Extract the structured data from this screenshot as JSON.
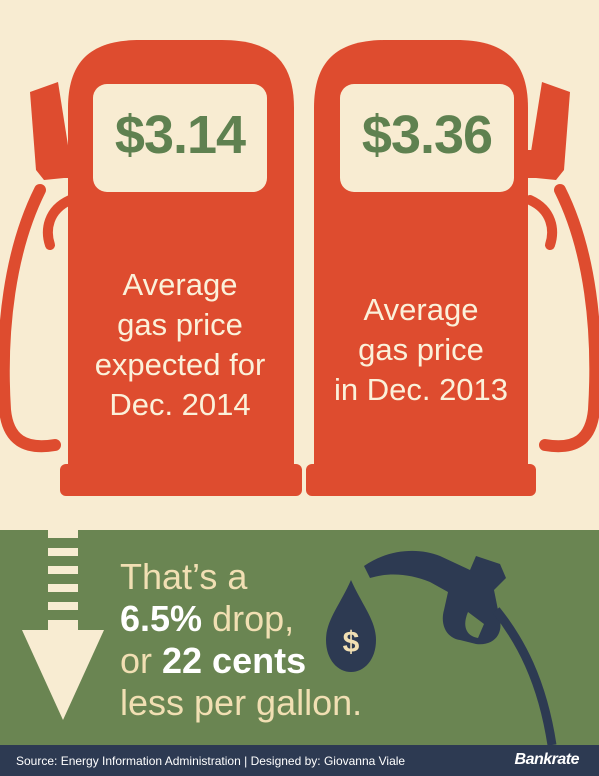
{
  "pumps": [
    {
      "price": "$3.14",
      "lines": [
        "Average",
        "gas price",
        "expected for",
        "Dec. 2014"
      ]
    },
    {
      "price": "$3.36",
      "lines": [
        "Average",
        "gas price",
        "in Dec. 2013"
      ]
    }
  ],
  "summary": {
    "line1": "That’s a",
    "line2_bold": "6.5%",
    "line2_rest": " drop,",
    "line3_pre": "or ",
    "line3_bold": "22 cents",
    "line4": "less per gallon."
  },
  "drop_icon_symbol": "$",
  "footer": {
    "source": "Source: Energy Information Administration  |  Designed by: Giovanna Viale",
    "brand": "Bankrate"
  },
  "colors": {
    "background": "#f8ecd2",
    "pump": "#de4c2f",
    "price": "#5f8150",
    "band": "#6a8552",
    "navy": "#2d3a52"
  },
  "icons": [
    "gas-pump-icon",
    "gas-nozzle-icon",
    "dollar-drop-icon",
    "down-arrow-icon"
  ]
}
